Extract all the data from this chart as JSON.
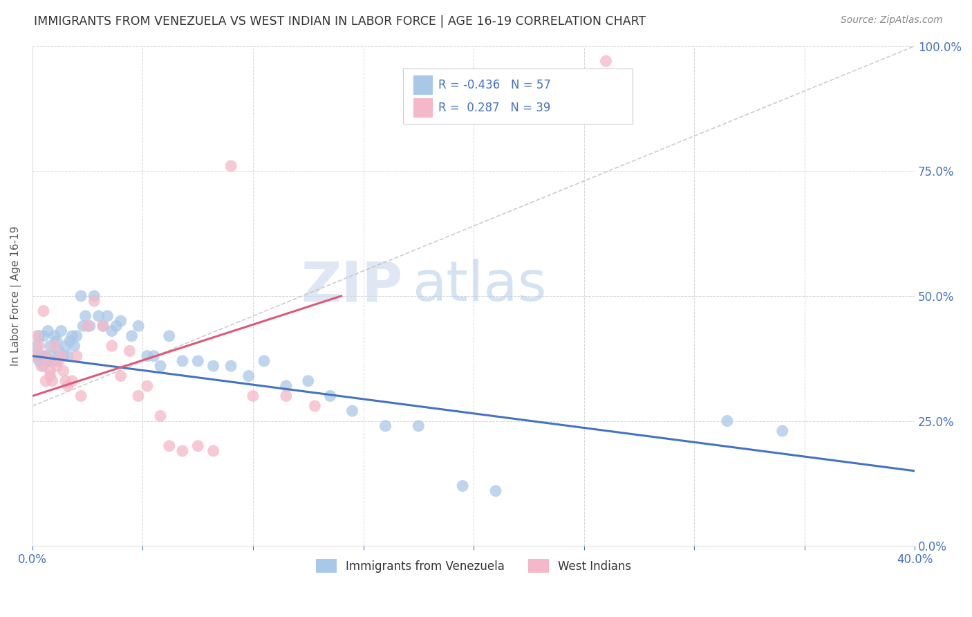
{
  "title": "IMMIGRANTS FROM VENEZUELA VS WEST INDIAN IN LABOR FORCE | AGE 16-19 CORRELATION CHART",
  "source": "Source: ZipAtlas.com",
  "ylabel": "In Labor Force | Age 16-19",
  "xlim": [
    0.0,
    0.4
  ],
  "ylim": [
    0.0,
    1.0
  ],
  "xticks": [
    0.0,
    0.05,
    0.1,
    0.15,
    0.2,
    0.25,
    0.3,
    0.35,
    0.4
  ],
  "xticklabels": [
    "0.0%",
    "",
    "",
    "",
    "",
    "",
    "",
    "",
    "40.0%"
  ],
  "yticks": [
    0.0,
    0.25,
    0.5,
    0.75,
    1.0
  ],
  "yticklabels_right": [
    "0.0%",
    "25.0%",
    "50.0%",
    "75.0%",
    "100.0%"
  ],
  "legend_R_blue": "-0.436",
  "legend_N_blue": "57",
  "legend_R_pink": "0.287",
  "legend_N_pink": "39",
  "legend_label_blue": "Immigrants from Venezuela",
  "legend_label_pink": "West Indians",
  "blue_color": "#a8c8e8",
  "pink_color": "#f4b8c8",
  "blue_line_color": "#4472c4",
  "pink_line_color": "#e05878",
  "ref_line_color": "#c0c0c0",
  "blue_dots_x": [
    0.001,
    0.002,
    0.003,
    0.003,
    0.004,
    0.005,
    0.005,
    0.006,
    0.007,
    0.007,
    0.008,
    0.009,
    0.01,
    0.01,
    0.011,
    0.012,
    0.013,
    0.014,
    0.015,
    0.016,
    0.017,
    0.018,
    0.019,
    0.02,
    0.022,
    0.023,
    0.024,
    0.026,
    0.028,
    0.03,
    0.032,
    0.034,
    0.036,
    0.038,
    0.04,
    0.045,
    0.048,
    0.052,
    0.055,
    0.058,
    0.062,
    0.068,
    0.075,
    0.082,
    0.09,
    0.098,
    0.105,
    0.115,
    0.125,
    0.135,
    0.145,
    0.16,
    0.175,
    0.195,
    0.21,
    0.315,
    0.34
  ],
  "blue_dots_y": [
    0.38,
    0.4,
    0.42,
    0.37,
    0.38,
    0.36,
    0.42,
    0.38,
    0.37,
    0.43,
    0.4,
    0.38,
    0.42,
    0.37,
    0.41,
    0.39,
    0.43,
    0.38,
    0.4,
    0.38,
    0.41,
    0.42,
    0.4,
    0.42,
    0.5,
    0.44,
    0.46,
    0.44,
    0.5,
    0.46,
    0.44,
    0.46,
    0.43,
    0.44,
    0.45,
    0.42,
    0.44,
    0.38,
    0.38,
    0.36,
    0.42,
    0.37,
    0.37,
    0.36,
    0.36,
    0.34,
    0.37,
    0.32,
    0.33,
    0.3,
    0.27,
    0.24,
    0.24,
    0.12,
    0.11,
    0.25,
    0.23
  ],
  "pink_dots_x": [
    0.001,
    0.002,
    0.003,
    0.004,
    0.005,
    0.006,
    0.006,
    0.007,
    0.008,
    0.008,
    0.009,
    0.01,
    0.011,
    0.012,
    0.013,
    0.014,
    0.015,
    0.016,
    0.018,
    0.02,
    0.022,
    0.025,
    0.028,
    0.032,
    0.036,
    0.04,
    0.044,
    0.048,
    0.052,
    0.058,
    0.062,
    0.068,
    0.075,
    0.082,
    0.09,
    0.1,
    0.115,
    0.128,
    0.26
  ],
  "pink_dots_y": [
    0.38,
    0.42,
    0.4,
    0.36,
    0.47,
    0.38,
    0.33,
    0.37,
    0.35,
    0.34,
    0.33,
    0.4,
    0.36,
    0.37,
    0.38,
    0.35,
    0.33,
    0.32,
    0.33,
    0.38,
    0.3,
    0.44,
    0.49,
    0.44,
    0.4,
    0.34,
    0.39,
    0.3,
    0.32,
    0.26,
    0.2,
    0.19,
    0.2,
    0.19,
    0.76,
    0.3,
    0.3,
    0.28,
    0.97
  ],
  "blue_trend": [
    0.38,
    0.15
  ],
  "pink_trend_x": [
    0.0,
    0.14
  ],
  "pink_trend_y": [
    0.3,
    0.5
  ],
  "ref_line": [
    [
      0.0,
      0.4
    ],
    [
      0.28,
      1.0
    ]
  ]
}
